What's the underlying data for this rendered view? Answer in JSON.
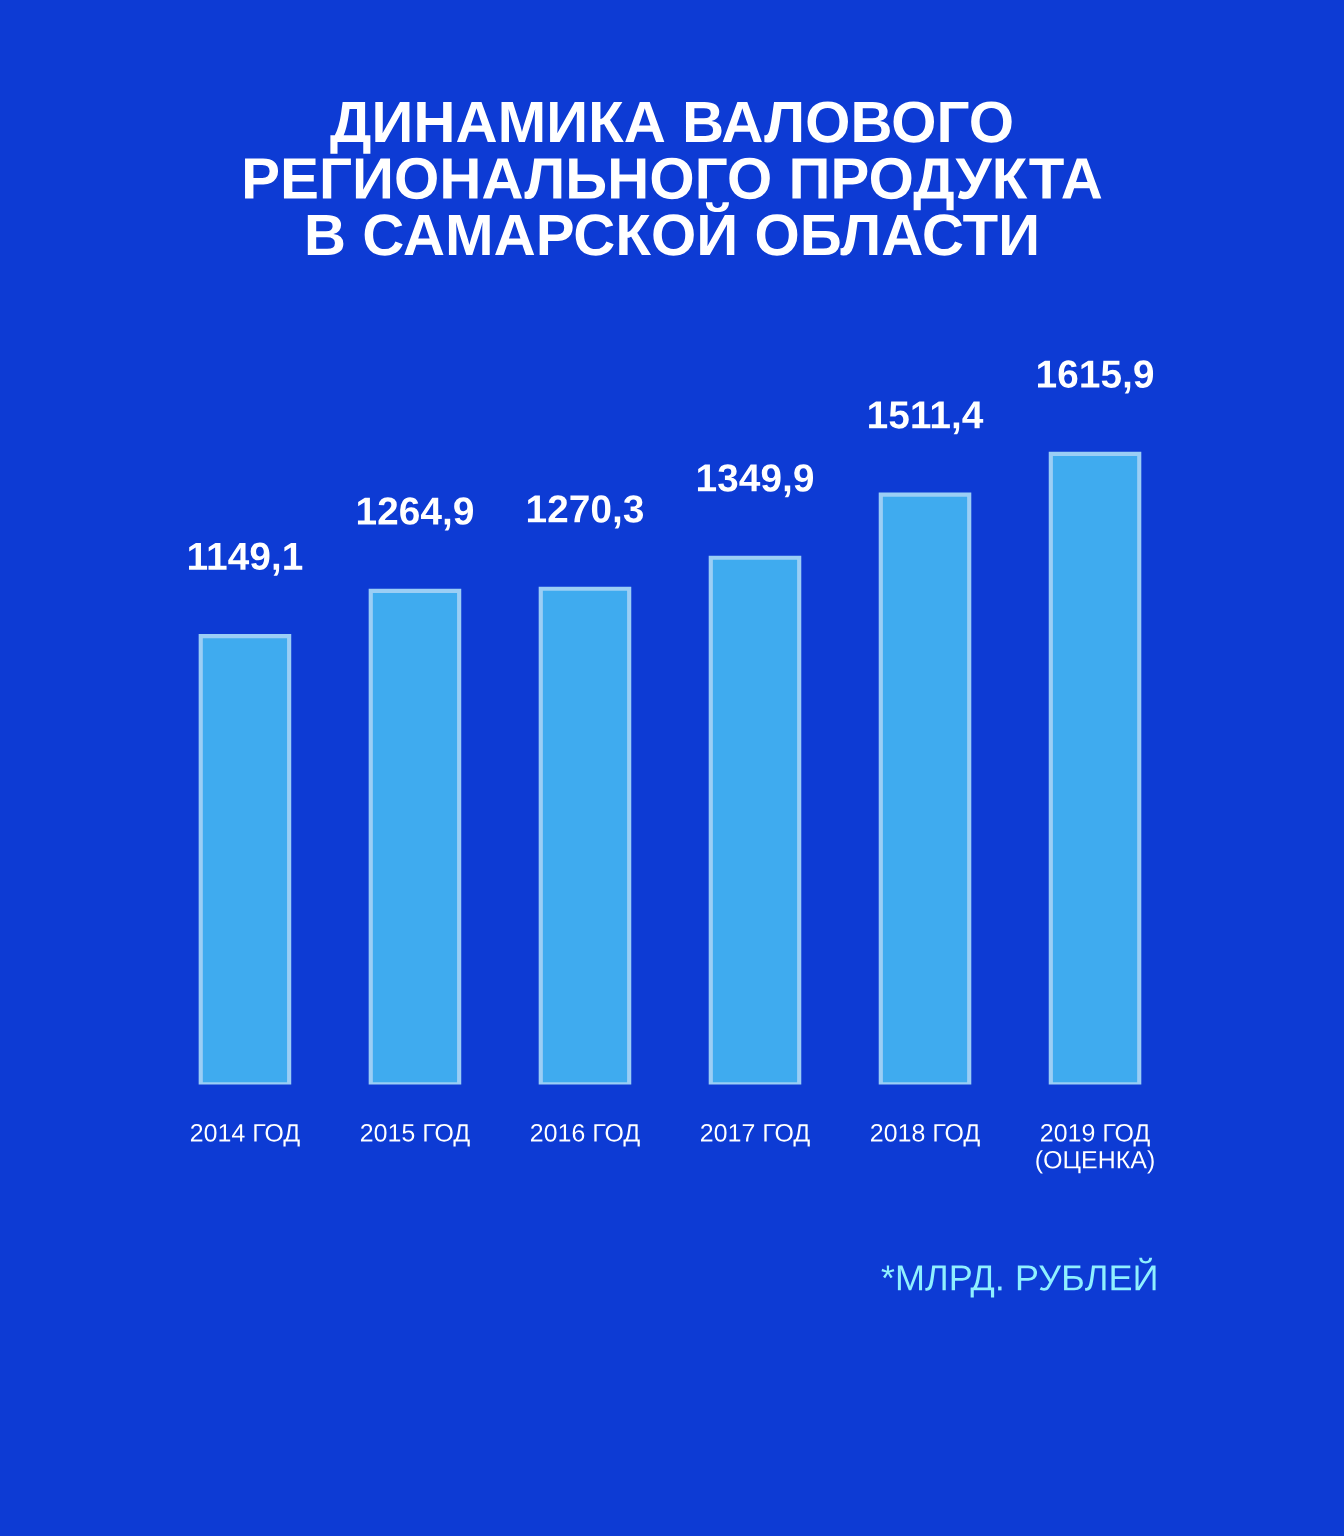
{
  "chart_data": {
    "type": "bar",
    "title": "ДИНАМИКА ВАЛОВОГО\nРЕГИОНАЛЬНОГО ПРОДУКТА\nВ САМАРСКОЙ ОБЛАСТИ",
    "categories": [
      "2014 ГОД",
      "2015 ГОД",
      "2016 ГОД",
      "2017 ГОД",
      "2018 ГОД",
      "2019 ГОД\n(ОЦЕНКА)"
    ],
    "values": [
      1149.1,
      1264.9,
      1270.3,
      1349.9,
      1511.4,
      1615.9
    ],
    "value_labels": [
      "1149,1",
      "1264,9",
      "1270,3",
      "1349,9",
      "1511,4",
      "1615,9"
    ],
    "color": "#45b8f2",
    "annotations": [
      "*МЛРД. РУБЛЕЙ"
    ]
  }
}
